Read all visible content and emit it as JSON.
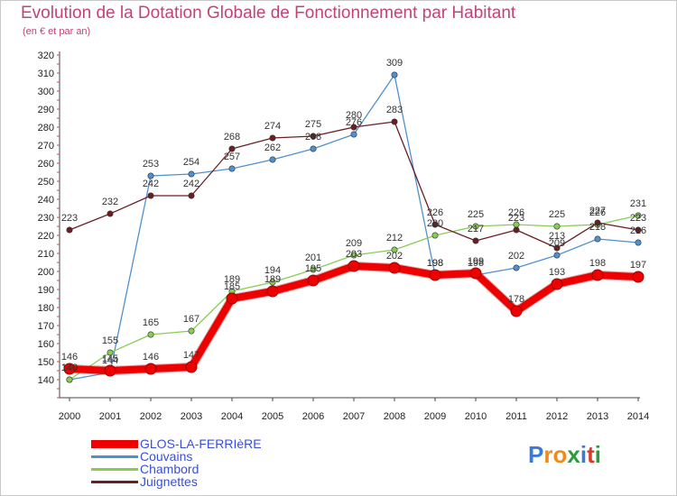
{
  "title": "Evolution de la Dotation Globale de Fonctionnement par Habitant",
  "subtitle": "(en € et par an)",
  "logo": "Proxiti",
  "chart_data": {
    "type": "line",
    "x": [
      "2000",
      "2001",
      "2002",
      "2003",
      "2004",
      "2005",
      "2006",
      "2007",
      "2008",
      "2009",
      "2010",
      "2011",
      "2012",
      "2013",
      "2014"
    ],
    "ylim": [
      130,
      320
    ],
    "yticks": [
      140,
      150,
      160,
      170,
      180,
      190,
      200,
      210,
      220,
      230,
      240,
      250,
      260,
      270,
      280,
      290,
      300,
      310,
      320
    ],
    "grid": false,
    "legend_position": "bottom-left",
    "series": [
      {
        "name": "Couvains",
        "color": "#4f91cf",
        "values": [
          140,
          144,
          253,
          254,
          257,
          262,
          268,
          276,
          309,
          198,
          198,
          202,
          209,
          218,
          216
        ]
      },
      {
        "name": "Chambord",
        "color": "#88cc55",
        "values": [
          140,
          155,
          165,
          167,
          189,
          194,
          201,
          209,
          212,
          220,
          225,
          226,
          225,
          226,
          231
        ]
      },
      {
        "name": "Juignettes",
        "color": "#6b1f25",
        "values": [
          223,
          232,
          242,
          242,
          268,
          274,
          275,
          280,
          283,
          226,
          217,
          223,
          213,
          227,
          223
        ]
      },
      {
        "name": "GLOS-LA-FERRIèRE",
        "color": "#ee0000",
        "values": [
          146,
          145,
          146,
          147,
          185,
          189,
          195,
          203,
          202,
          198,
          199,
          178,
          193,
          198,
          197
        ]
      }
    ]
  }
}
